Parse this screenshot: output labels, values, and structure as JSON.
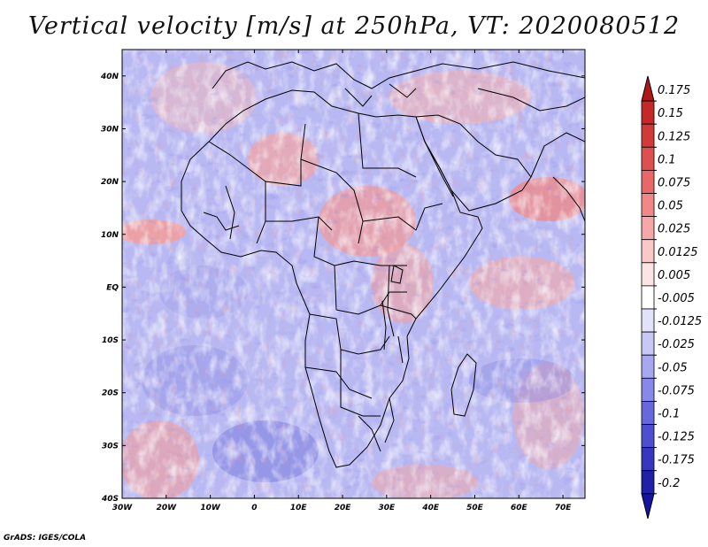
{
  "title": "Vertical velocity [m/s] at 250hPa, VT: 2020080512",
  "credit": "GrADS: IGES/COLA",
  "map": {
    "region": "Africa, Mediterranean and Arabian Peninsula",
    "lon_range": [
      -30,
      75
    ],
    "lat_range": [
      -40,
      45
    ],
    "x_ticks": [
      "30W",
      "20W",
      "10W",
      "0",
      "10E",
      "20E",
      "30E",
      "40E",
      "50E",
      "60E",
      "70E"
    ],
    "y_ticks": [
      "40N",
      "30N",
      "20N",
      "10N",
      "EQ",
      "10S",
      "20S",
      "30S",
      "40S"
    ]
  },
  "colorbar": {
    "labels": [
      "0.175",
      "0.15",
      "0.125",
      "0.1",
      "0.075",
      "0.05",
      "0.025",
      "0.0125",
      "0.005",
      "-0.005",
      "-0.0125",
      "-0.025",
      "-0.05",
      "-0.075",
      "-0.1",
      "-0.125",
      "-0.175",
      "-0.2"
    ],
    "colors": [
      "#b01818",
      "#c42828",
      "#d23a3a",
      "#de5050",
      "#e86868",
      "#f08888",
      "#f6a8a8",
      "#fbc8c8",
      "#fde4e4",
      "#ffffff",
      "#e2e2fb",
      "#c8c8f6",
      "#a8a8f0",
      "#8888e8",
      "#6868dc",
      "#4e4ed0",
      "#3636be",
      "#2020a8",
      "#1414a0"
    ]
  }
}
